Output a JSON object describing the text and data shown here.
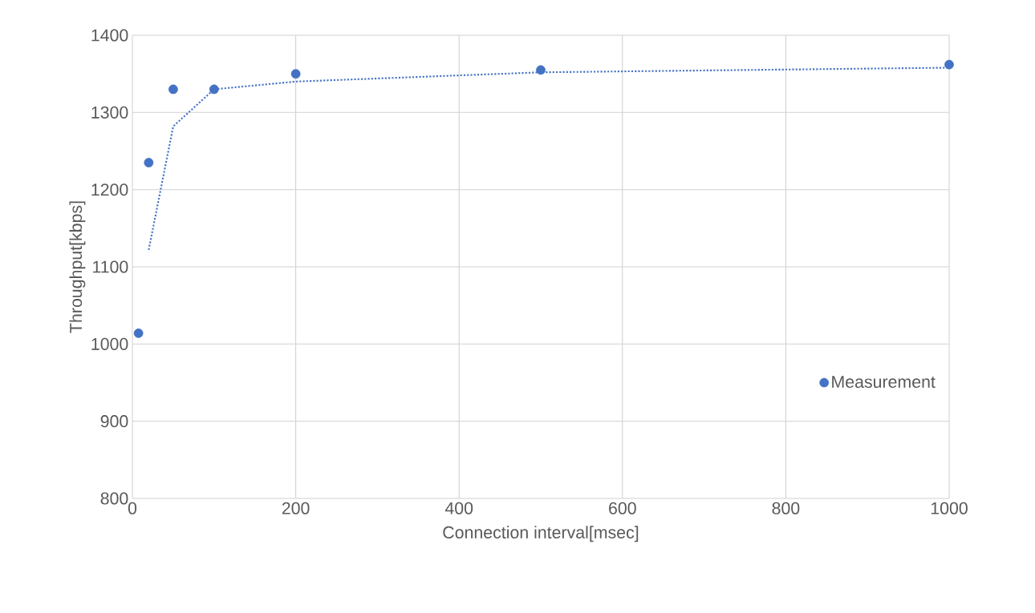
{
  "chart_data": {
    "type": "scatter",
    "xlabel": "Connection interval[msec]",
    "ylabel": "Throughput[kbps]",
    "xlim": [
      0,
      1000
    ],
    "ylim": [
      800,
      1400
    ],
    "xticks": [
      0,
      200,
      400,
      600,
      800,
      1000
    ],
    "yticks": [
      800,
      900,
      1000,
      1100,
      1200,
      1300,
      1400
    ],
    "grid": true,
    "legend": "bottom right",
    "series": [
      {
        "name": "Measurement",
        "marker": "circle",
        "color": "#4472c4",
        "x": [
          7.5,
          20,
          50,
          100,
          200,
          500,
          1000
        ],
        "values": [
          1014,
          1235,
          1330,
          1330,
          1350,
          1355,
          1362
        ]
      },
      {
        "type": "line",
        "color": "#4472c4",
        "line_style": "dotted",
        "marker": "none",
        "x": [
          20,
          50,
          100,
          200,
          500,
          1000
        ],
        "values": [
          1122,
          1282,
          1330,
          1340,
          1352,
          1358
        ]
      }
    ]
  }
}
